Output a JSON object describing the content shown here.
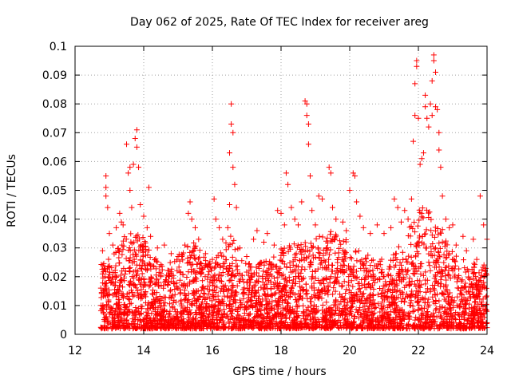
{
  "chart_data": {
    "type": "scatter",
    "title": "Day 062 of 2025, Rate Of TEC Index for receiver areg",
    "xlabel": "GPS time / hours",
    "ylabel": "ROTI / TECUs",
    "xlim": [
      12,
      24
    ],
    "ylim": [
      0,
      0.1
    ],
    "x_ticks": [
      "12",
      "14",
      "16",
      "18",
      "20",
      "22",
      "24"
    ],
    "y_ticks": [
      "0",
      "0.01",
      "0.02",
      "0.03",
      "0.04",
      "0.05",
      "0.06",
      "0.07",
      "0.08",
      "0.09",
      "0.1"
    ],
    "grid": true,
    "marker": "+",
    "series_color": "#ff0000",
    "points": [
      [
        12.8,
        0.029
      ],
      [
        12.8,
        0.021
      ],
      [
        12.9,
        0.055
      ],
      [
        12.9,
        0.051
      ],
      [
        12.9,
        0.048
      ],
      [
        12.95,
        0.044
      ],
      [
        13.0,
        0.035
      ],
      [
        13.1,
        0.031
      ],
      [
        13.2,
        0.037
      ],
      [
        13.3,
        0.042
      ],
      [
        13.35,
        0.039
      ],
      [
        13.4,
        0.038
      ],
      [
        13.5,
        0.066
      ],
      [
        13.55,
        0.056
      ],
      [
        13.6,
        0.058
      ],
      [
        13.6,
        0.05
      ],
      [
        13.65,
        0.044
      ],
      [
        13.7,
        0.059
      ],
      [
        13.75,
        0.068
      ],
      [
        13.8,
        0.071
      ],
      [
        13.8,
        0.065
      ],
      [
        13.85,
        0.058
      ],
      [
        13.9,
        0.045
      ],
      [
        14.0,
        0.041
      ],
      [
        14.1,
        0.037
      ],
      [
        14.15,
        0.051
      ],
      [
        14.2,
        0.034
      ],
      [
        14.4,
        0.03
      ],
      [
        14.6,
        0.031
      ],
      [
        14.8,
        0.028
      ],
      [
        15.0,
        0.027
      ],
      [
        15.2,
        0.031
      ],
      [
        15.3,
        0.042
      ],
      [
        15.35,
        0.046
      ],
      [
        15.4,
        0.04
      ],
      [
        15.5,
        0.037
      ],
      [
        15.6,
        0.033
      ],
      [
        15.8,
        0.028
      ],
      [
        16.0,
        0.026
      ],
      [
        16.05,
        0.047
      ],
      [
        16.1,
        0.04
      ],
      [
        16.2,
        0.037
      ],
      [
        16.3,
        0.033
      ],
      [
        16.45,
        0.037
      ],
      [
        16.5,
        0.045
      ],
      [
        16.5,
        0.063
      ],
      [
        16.55,
        0.08
      ],
      [
        16.55,
        0.073
      ],
      [
        16.6,
        0.07
      ],
      [
        16.6,
        0.058
      ],
      [
        16.65,
        0.052
      ],
      [
        16.7,
        0.044
      ],
      [
        16.8,
        0.03
      ],
      [
        17.0,
        0.027
      ],
      [
        17.2,
        0.033
      ],
      [
        17.3,
        0.036
      ],
      [
        17.5,
        0.032
      ],
      [
        17.6,
        0.035
      ],
      [
        17.8,
        0.031
      ],
      [
        17.9,
        0.043
      ],
      [
        18.0,
        0.042
      ],
      [
        18.1,
        0.038
      ],
      [
        18.15,
        0.056
      ],
      [
        18.2,
        0.052
      ],
      [
        18.3,
        0.044
      ],
      [
        18.4,
        0.04
      ],
      [
        18.5,
        0.038
      ],
      [
        18.6,
        0.046
      ],
      [
        18.7,
        0.081
      ],
      [
        18.75,
        0.08
      ],
      [
        18.75,
        0.076
      ],
      [
        18.8,
        0.073
      ],
      [
        18.8,
        0.066
      ],
      [
        18.85,
        0.055
      ],
      [
        18.9,
        0.043
      ],
      [
        19.0,
        0.038
      ],
      [
        19.1,
        0.048
      ],
      [
        19.2,
        0.047
      ],
      [
        19.4,
        0.058
      ],
      [
        19.45,
        0.056
      ],
      [
        19.5,
        0.044
      ],
      [
        19.6,
        0.04
      ],
      [
        19.8,
        0.039
      ],
      [
        19.9,
        0.036
      ],
      [
        20.0,
        0.05
      ],
      [
        20.1,
        0.056
      ],
      [
        20.15,
        0.055
      ],
      [
        20.2,
        0.046
      ],
      [
        20.3,
        0.041
      ],
      [
        20.4,
        0.037
      ],
      [
        20.6,
        0.035
      ],
      [
        20.8,
        0.038
      ],
      [
        21.0,
        0.035
      ],
      [
        21.2,
        0.037
      ],
      [
        21.3,
        0.047
      ],
      [
        21.4,
        0.044
      ],
      [
        21.5,
        0.039
      ],
      [
        21.6,
        0.043
      ],
      [
        21.7,
        0.04
      ],
      [
        21.8,
        0.047
      ],
      [
        21.85,
        0.067
      ],
      [
        21.9,
        0.076
      ],
      [
        21.9,
        0.087
      ],
      [
        21.95,
        0.093
      ],
      [
        21.95,
        0.095
      ],
      [
        22.0,
        0.075
      ],
      [
        22.05,
        0.059
      ],
      [
        22.1,
        0.061
      ],
      [
        22.15,
        0.063
      ],
      [
        22.2,
        0.079
      ],
      [
        22.2,
        0.083
      ],
      [
        22.25,
        0.075
      ],
      [
        22.3,
        0.072
      ],
      [
        22.35,
        0.08
      ],
      [
        22.4,
        0.076
      ],
      [
        22.4,
        0.088
      ],
      [
        22.45,
        0.097
      ],
      [
        22.45,
        0.095
      ],
      [
        22.5,
        0.091
      ],
      [
        22.5,
        0.079
      ],
      [
        22.55,
        0.078
      ],
      [
        22.6,
        0.07
      ],
      [
        22.6,
        0.064
      ],
      [
        22.65,
        0.058
      ],
      [
        22.7,
        0.048
      ],
      [
        22.8,
        0.04
      ],
      [
        22.9,
        0.037
      ],
      [
        23.0,
        0.038
      ],
      [
        23.1,
        0.031
      ],
      [
        23.3,
        0.034
      ],
      [
        23.4,
        0.029
      ],
      [
        23.6,
        0.033
      ],
      [
        23.7,
        0.026
      ],
      [
        23.8,
        0.048
      ],
      [
        23.9,
        0.038
      ],
      [
        24.0,
        0.033
      ],
      [
        13.0,
        0.014
      ],
      [
        13.3,
        0.017
      ],
      [
        13.6,
        0.022
      ],
      [
        14.0,
        0.019
      ],
      [
        14.5,
        0.02
      ],
      [
        15.0,
        0.016
      ],
      [
        15.5,
        0.021
      ],
      [
        16.0,
        0.017
      ],
      [
        16.5,
        0.023
      ],
      [
        17.0,
        0.018
      ],
      [
        17.5,
        0.016
      ],
      [
        18.0,
        0.015
      ],
      [
        18.5,
        0.02
      ],
      [
        19.0,
        0.022
      ],
      [
        19.5,
        0.024
      ],
      [
        20.0,
        0.023
      ],
      [
        20.5,
        0.022
      ],
      [
        21.0,
        0.02
      ],
      [
        21.5,
        0.024
      ],
      [
        22.0,
        0.028
      ],
      [
        22.5,
        0.03
      ],
      [
        23.0,
        0.023
      ],
      [
        23.5,
        0.019
      ],
      [
        23.9,
        0.018
      ],
      [
        12.9,
        0.006
      ],
      [
        13.5,
        0.005
      ],
      [
        14.2,
        0.004
      ],
      [
        15.1,
        0.005
      ],
      [
        16.2,
        0.004
      ],
      [
        17.2,
        0.003
      ],
      [
        18.3,
        0.004
      ],
      [
        19.3,
        0.003
      ],
      [
        20.4,
        0.004
      ],
      [
        21.4,
        0.003
      ],
      [
        22.3,
        0.003
      ],
      [
        23.2,
        0.004
      ],
      [
        23.8,
        0.003
      ]
    ]
  }
}
